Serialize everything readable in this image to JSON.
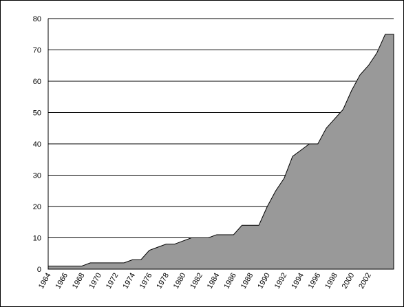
{
  "chart_data": {
    "type": "area",
    "categories": [
      "1964",
      null,
      "1966",
      null,
      "1968",
      null,
      "1970",
      null,
      "1972",
      null,
      "1974",
      null,
      "1976",
      null,
      "1978",
      null,
      "1980",
      null,
      "1982",
      null,
      "1984",
      null,
      "1986",
      null,
      "1988",
      null,
      "1990",
      null,
      "1992",
      null,
      "1994",
      null,
      "1996",
      null,
      "1998",
      null,
      "2000",
      null,
      "2002",
      null,
      null,
      null
    ],
    "values": [
      1,
      1,
      1,
      1,
      1,
      2,
      2,
      2,
      2,
      2,
      3,
      3,
      6,
      7,
      8,
      8,
      9,
      10,
      10,
      10,
      11,
      11,
      11,
      14,
      14,
      14,
      20,
      25,
      29,
      36,
      38,
      40,
      40,
      45,
      48,
      51,
      57,
      62,
      65,
      69,
      75,
      75
    ],
    "color": "#999999",
    "ylim": [
      0,
      80
    ],
    "yticks": [
      0,
      10,
      20,
      30,
      40,
      50,
      60,
      70,
      80
    ],
    "grid": true
  }
}
